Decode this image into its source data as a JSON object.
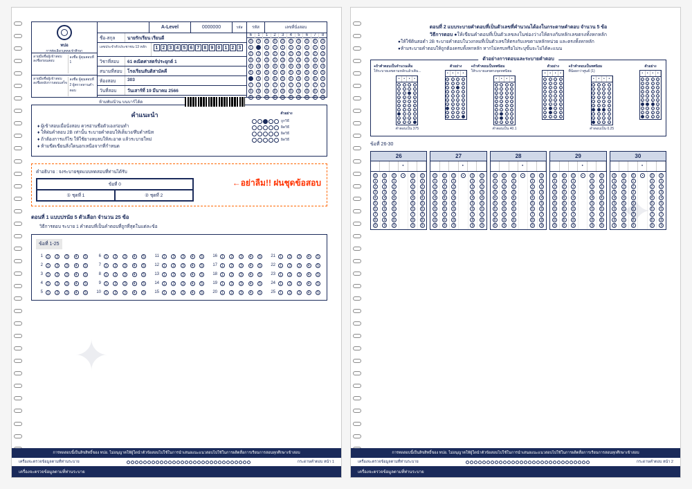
{
  "logo_text": "ทปอ",
  "logo_sub": "การคัดเลือกบุคคลเข้าศึกษา",
  "sig_block1": {
    "title": "ลายมือชื่อผู้เข้าสอบ\nลงชื่อก่อนสอบ",
    "sub": "(ห้ามลง 2ล เข้าห้อง)"
  },
  "sig_block2": {
    "title": "ลายมือชื่อผู้เข้าสอบ\nลงชื่อหลังการสอบเสร็จ",
    "sub": "(ห้ามลง 2ล เข้าห้อง)"
  },
  "sig_r1": "ลงชื่อ\nผู้คุมสอบที่ 1",
  "sig_r2": "ลงชื่อ\nผู้คุมสอบที่ 2\nผู้ตรวจทานคำตอบ",
  "level_label": "A-Level",
  "level_code": "0000000",
  "level_sub": "รหัส",
  "name_k": "ชื่อ-สกุล",
  "name_v": "นายรักเรียน เรียนดี",
  "id_k": "เลขประจำตัวประชาชน 13 หลัก",
  "id_v": "1234567890123",
  "subj_k": "วิชาที่สอบ",
  "subj_v": "61 คณิตศาสตร์ประยุกต์ 1",
  "school_k": "สนามที่สอบ",
  "school_v": "โรงเรียนสันติสามัคคี",
  "room_k": "ห้องสอบ",
  "room_v": "303",
  "date_k": "วันที่สอบ",
  "date_v": "วันเสาร์ที่ 19 มีนาคม 2566",
  "pencil": "ห้ามพับ/ม้วน\nบนบาร์โค้ด",
  "seat_hdr1": "รหัส",
  "seat_hdr2": "เลขที่นั่งสอบ",
  "seat_top1": "6",
  "seat_top2": "1",
  "seat_nums": [
    1,
    2,
    3,
    4,
    5,
    6,
    7,
    8
  ],
  "bubble_digits": [
    0,
    1,
    2,
    3,
    4,
    5,
    6,
    7,
    8,
    9
  ],
  "instr_title": "คำแนะนำ",
  "instr_items": [
    "ผู้เข้าสอบเมื่อนั่งสอบ ควรอ่านชื่อตัวเองก่อนทำ",
    "ให้ฝนคำตอบ 2B เท่านั้น ระบายคำตอบให้เต็มวง/ทึบดำสนิท",
    "ถ้าต้องการแก้ไข ให้ใช้ยางลบลบให้สะอาด แล้วระบายใหม่",
    "ห้ามขีดเขียนสิ่งใดนอกเหนือจากที่กำหนด"
  ],
  "example_title": "ตัวอย่าง",
  "ex_ok": "ถูกวิธี",
  "ex_bad": "ผิดวิธี",
  "warn_label": "คำอธิบาย : จงระบายชุดแบบทดสอบที่ท่านได้รับ",
  "warn_exam": "ข้อที่ 0",
  "warn_set1": "① ชุดที่ 1",
  "warn_set2": "② ชุดที่ 2",
  "warn_big": "←อย่าลืม!! ฝนชุดข้อสอบ",
  "part1_title": "ตอนที่ 1  แบบปรนัย 5 ตัวเลือก จำนวน 25 ข้อ",
  "part1_sub": "วิธีการตอบ ระบาย 1 คำตอบที่เป็นคำตอบที่ถูกที่สุดในแต่ละข้อ",
  "p1_label": "ข้อที่ 1-25",
  "q_count": 25,
  "choices": [
    1,
    2,
    3,
    4,
    5
  ],
  "ftr_warn": "การทดสอบนี้เป็นลิขสิทธิ์ของ ทปอ. ไม่อนุญาตให้ผู้ใดนำตัวข้อสอบไปใช้ในการนำเสนอแนะแนวสอบไปใช้ในการผลิตสื่อการเรียนการสอนทุกศึกษาเข้าสอบ",
  "ftr_label": "เครื่องจะตรวจข้อมูลตามที่ท่านระบาย",
  "ftr_page1": "กระดาษคำตอบ หน้า 1",
  "ftr_page2": "กระดาษคำตอบ หน้า 2",
  "p2_title": "ตอนที่ 2  แบบระบายคำตอบที่เป็นตัวเลขที่คำนวณได้องในกระดาษคำตอบ  จำนวน  5  ข้อ",
  "p2_method": "วิธีการตอบ",
  "p2_m1": "ให้เขียนคำตอบที่เป็นตัวเลขลงในช่องว่างให้ตรงกับหลักเลขตรงทั้งหกหลัก",
  "p2_m2": "ให้ใช้ดินสอดำ 2B ระบายคำตอบในวงกลมที่เป็นตัวเลขให้ตรงกับเลขตามหลักหน่วย และตรงทั้งหกหลัก",
  "p2_m3": "ห้ามระบายคำตอบให้ถูกต้องครบทั้งหกหลัก  หากไม่ครบหรือไม่ระบุขั้นจะไม่ได้คะแนน",
  "ex_fill_title": "ตัวอย่างการตอบและระบายคำตอบ",
  "ex_cols": [
    {
      "t": "ถ้าคำตอบเป็นจำนวนเต็ม",
      "d": "ให้ระบายเลขตามหลักแล้วเติม...",
      "r": "คำตอบเป็น 375",
      "h": "ตัวอย่าง"
    },
    {
      "t": "ถ้าคำตอบเป็นทศนิยม",
      "d": "ให้ระบายเลขตรงจุดทศนิยม",
      "r": "คำตอบเป็น 40.1",
      "h": "ตัวอย่าง"
    },
    {
      "t": "ถ้าคำตอบเป็นทศนิยม",
      "d": "ที่น้อยกว่าศูนย์ (1)",
      "r": "คำตอบเป็น 0.25",
      "h": "ตัวอย่าง"
    }
  ],
  "p2_label": "ข้อที่ 26-30",
  "fill_q": [
    26,
    27,
    28,
    29,
    30
  ],
  "fill_cols": 6,
  "colors": {
    "primary": "#1a2a5a",
    "accent": "#ff6600",
    "red": "#ff3300"
  }
}
